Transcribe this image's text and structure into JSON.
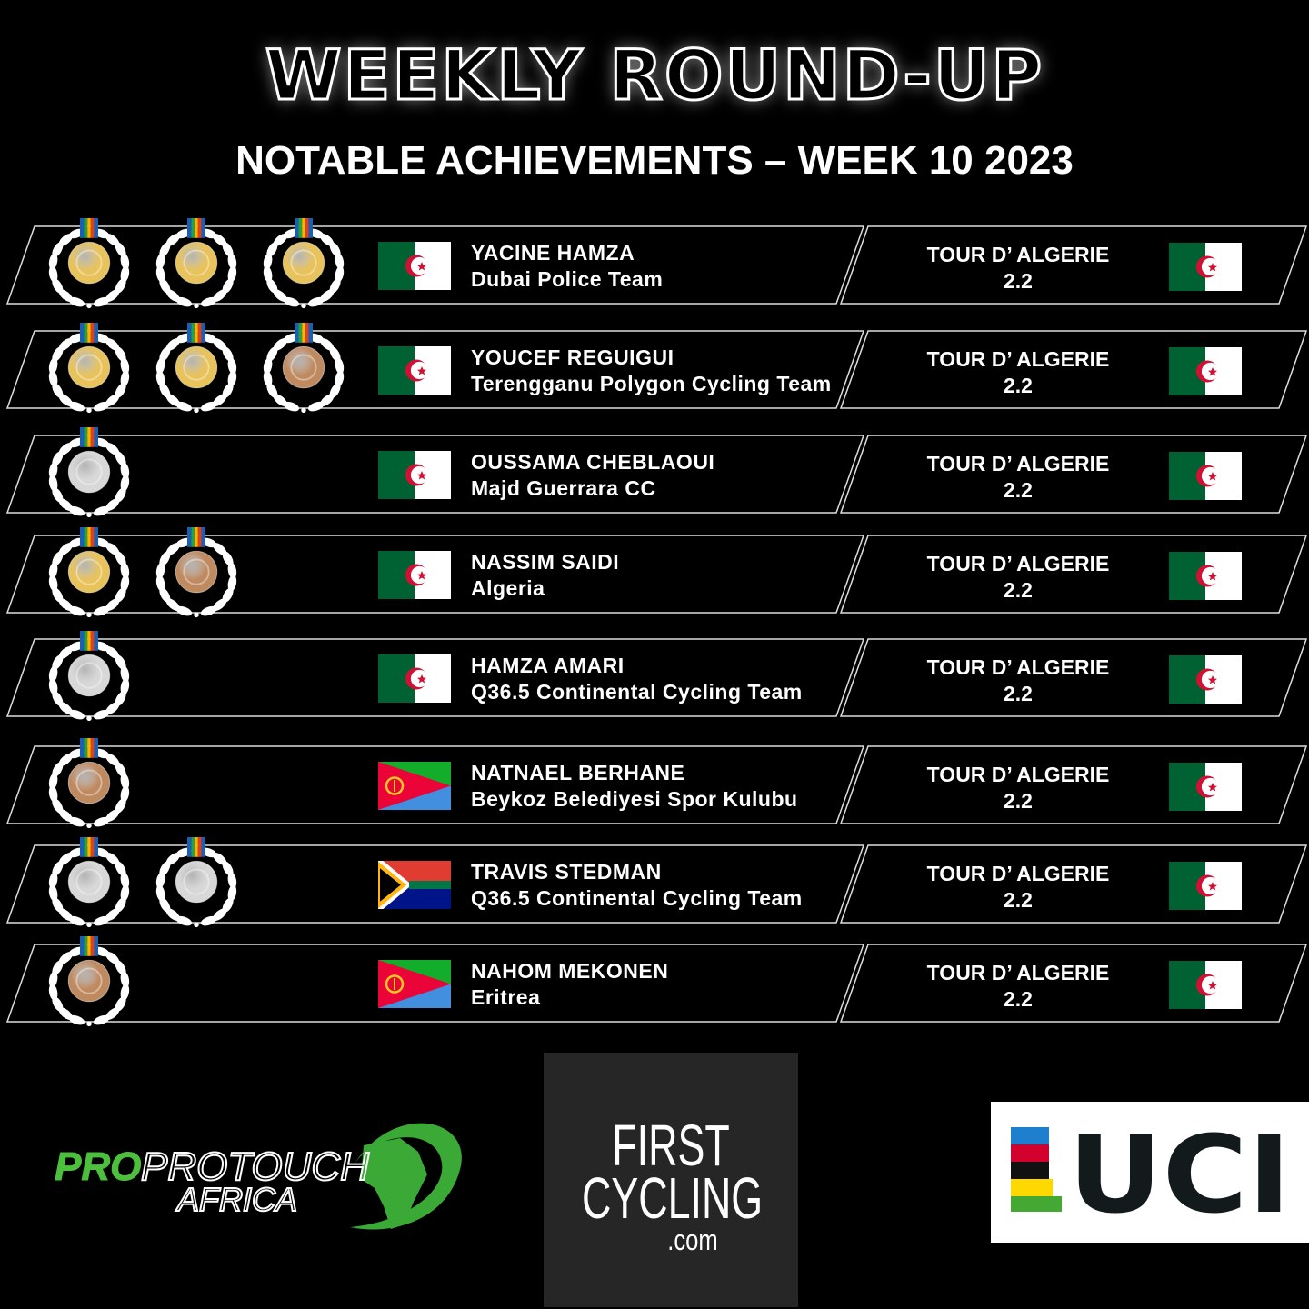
{
  "header": {
    "title": "WEEKLY ROUND-UP",
    "subtitle": "NOTABLE ACHIEVEMENTS – WEEK 10 2023"
  },
  "colors": {
    "gold": "#e8c25a",
    "silver": "#d8d8d8",
    "bronze": "#c08a60",
    "background": "#000000",
    "text": "#ffffff"
  },
  "rows": [
    {
      "medals": [
        "gold",
        "gold",
        "gold"
      ],
      "flag": "algeria",
      "name": "YACINE HAMZA",
      "team": "Dubai Police Team",
      "race": "TOUR D’ ALGERIE 2.2",
      "race_flag": "algeria"
    },
    {
      "medals": [
        "gold",
        "gold",
        "bronze"
      ],
      "flag": "algeria",
      "name": "YOUCEF REGUIGUI",
      "team": "Terengganu Polygon Cycling Team",
      "race": "TOUR D’ ALGERIE 2.2",
      "race_flag": "algeria"
    },
    {
      "medals": [
        "silver"
      ],
      "flag": "algeria",
      "name": "OUSSAMA CHEBLAOUI",
      "team": "Majd Guerrara CC",
      "race": "TOUR D’ ALGERIE 2.2",
      "race_flag": "algeria"
    },
    {
      "medals": [
        "gold",
        "bronze"
      ],
      "flag": "algeria",
      "name": "NASSIM SAIDI",
      "team": "Algeria",
      "race": "TOUR D’ ALGERIE 2.2",
      "race_flag": "algeria"
    },
    {
      "medals": [
        "silver"
      ],
      "flag": "algeria",
      "name": "HAMZA AMARI",
      "team": "Q36.5 Continental Cycling Team",
      "race": "TOUR D’ ALGERIE 2.2",
      "race_flag": "algeria"
    },
    {
      "medals": [
        "bronze"
      ],
      "flag": "eritrea",
      "name": "NATNAEL BERHANE",
      "team": "Beykoz Belediyesi Spor Kulubu",
      "race": "TOUR D’ ALGERIE 2.2",
      "race_flag": "algeria"
    },
    {
      "medals": [
        "silver",
        "silver"
      ],
      "flag": "south-africa",
      "name": "TRAVIS STEDMAN",
      "team": "Q36.5 Continental Cycling Team",
      "race": "TOUR D’ ALGERIE 2.2",
      "race_flag": "algeria"
    },
    {
      "medals": [
        "bronze"
      ],
      "flag": "eritrea",
      "name": "NAHOM MEKONEN",
      "team": "Eritrea",
      "race": "TOUR D’ ALGERIE 2.2",
      "race_flag": "algeria"
    }
  ],
  "logos": {
    "protouch": {
      "line1": "PROTOUCH",
      "line2": "AFRICA"
    },
    "firstcycling": {
      "line1": "FIRST",
      "line2": "CYCLING",
      "line3": ".com"
    },
    "uci": "UCI"
  }
}
